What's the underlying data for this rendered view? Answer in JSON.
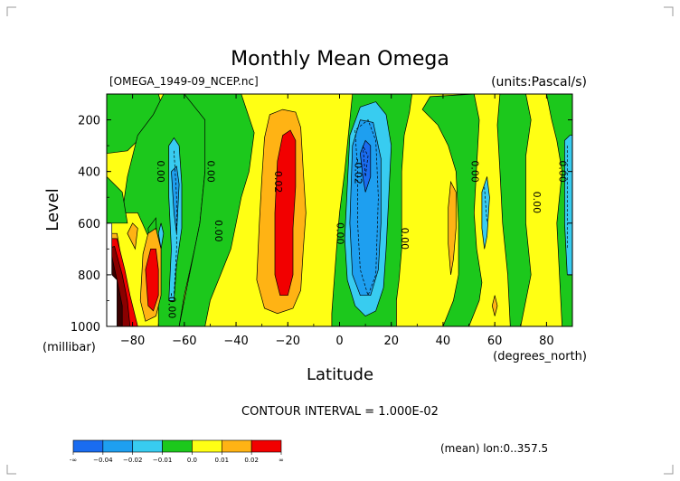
{
  "chart_data": {
    "type": "heatmap",
    "title": "Monthly Mean Omega",
    "file_label": "[OMEGA_1949-09_NCEP.nc]",
    "units_label": "(units:Pascal/s)",
    "xlabel": "Latitude",
    "x_units": "(degrees_north)",
    "ylabel": "Level",
    "y_units": "(millibar)",
    "xlim": [
      -90,
      90
    ],
    "ylim": [
      1000,
      100
    ],
    "x_ticks": [
      -80,
      -60,
      -40,
      -20,
      0,
      20,
      40,
      60,
      80
    ],
    "x_tick_labels": [
      "−80",
      "−60",
      "−40",
      "−20",
      "0",
      "20",
      "40",
      "60",
      "80"
    ],
    "y_ticks": [
      200,
      400,
      600,
      800,
      1000
    ],
    "y_tick_labels": [
      "200",
      "400",
      "600",
      "800",
      "1000"
    ],
    "contour_interval_text": "CONTOUR INTERVAL = 1.000E-02",
    "mean_text": "(mean) lon:0..357.5",
    "contour_labels": [
      {
        "text": "0.00",
        "lat": -70.5,
        "lev": 400
      },
      {
        "text": "0.00",
        "lat": -51,
        "lev": 400
      },
      {
        "text": "0.00",
        "lat": -48,
        "lev": 630
      },
      {
        "text": "0.02",
        "lat": -25,
        "lev": 440
      },
      {
        "text": "0.00",
        "lat": -1,
        "lev": 640
      },
      {
        "text": "-0.02",
        "lat": 6,
        "lev": 400
      },
      {
        "text": "0.00",
        "lat": 24,
        "lev": 660
      },
      {
        "text": "0.00",
        "lat": 51,
        "lev": 400
      },
      {
        "text": "0.00",
        "lat": 75,
        "lev": 520
      },
      {
        "text": "0.00",
        "lat": 85,
        "lev": 400
      },
      {
        "text": "-0.00",
        "lat": -66,
        "lev": 920
      }
    ],
    "colorbar": {
      "colors": [
        "#1a6cf0",
        "#1e9ff0",
        "#38ccf0",
        "#1cc81c",
        "#ffff14",
        "#ffb314",
        "#f20000"
      ],
      "labels": [
        "-∞",
        "−0.04",
        "−0.02",
        "−0.01",
        "0.0",
        "0.01",
        "0.02",
        "∞"
      ]
    },
    "fill_colors": {
      "background": "#ffff14",
      "positive_1": "#ffff14",
      "positive_2": "#ffb314",
      "positive_3": "#f20000",
      "positive_4": "#8a0000",
      "positive_5": "#3a0000",
      "negative_1": "#1cc81c",
      "negative_2": "#38ccf0",
      "negative_3": "#1e9ff0",
      "negative_4": "#1a6cf0",
      "missing": "#ffffff"
    }
  }
}
